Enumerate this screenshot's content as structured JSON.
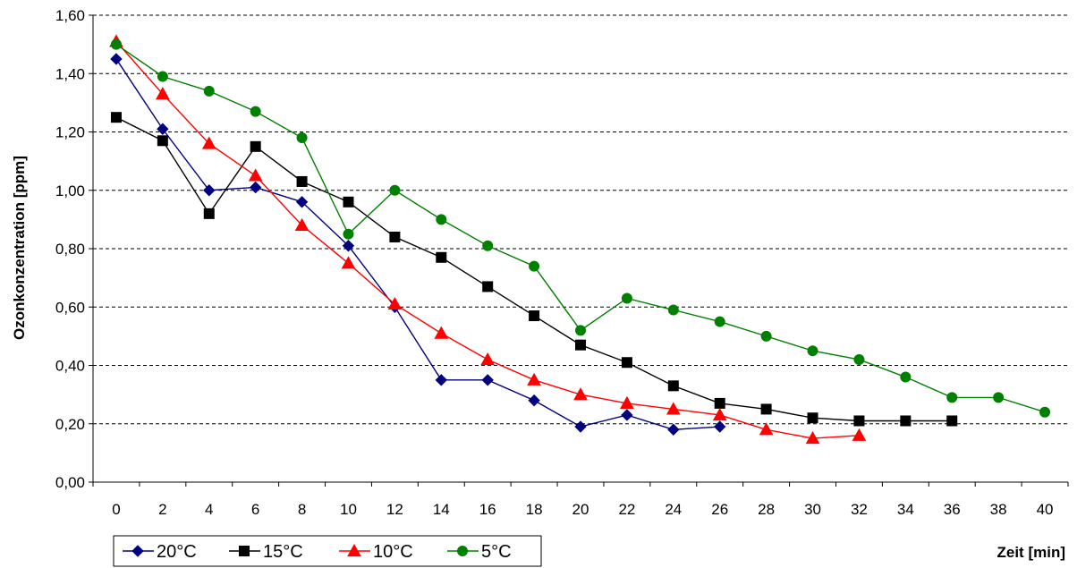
{
  "chart_data": {
    "type": "line",
    "title": "",
    "xlabel": "Zeit [min]",
    "ylabel": "Ozonkonzentration [ppm]",
    "xlim": [
      0,
      40
    ],
    "ylim": [
      0,
      1.6
    ],
    "x_ticks": [
      "0",
      "2",
      "4",
      "6",
      "8",
      "10",
      "12",
      "14",
      "16",
      "18",
      "20",
      "22",
      "24",
      "26",
      "28",
      "30",
      "32",
      "34",
      "36",
      "38",
      "40"
    ],
    "y_ticks": [
      "0,00",
      "0,20",
      "0,40",
      "0,60",
      "0,80",
      "1,00",
      "1,20",
      "1,40",
      "1,60"
    ],
    "grid": "horizontal dashed",
    "legend_position": "bottom-left",
    "series": [
      {
        "name": "20°C",
        "color": "#000080",
        "marker": "diamond",
        "x": [
          0,
          2,
          4,
          6,
          8,
          10,
          12,
          14,
          16,
          18,
          20,
          22,
          24,
          26
        ],
        "values": [
          1.45,
          1.21,
          1.0,
          1.01,
          0.96,
          0.81,
          0.6,
          0.35,
          0.35,
          0.28,
          0.19,
          0.23,
          0.18,
          0.19
        ]
      },
      {
        "name": "15°C",
        "color": "#000000",
        "marker": "square",
        "x": [
          0,
          2,
          4,
          6,
          8,
          10,
          12,
          14,
          16,
          18,
          20,
          22,
          24,
          26,
          28,
          30,
          32,
          34,
          36
        ],
        "values": [
          1.25,
          1.17,
          0.92,
          1.15,
          1.03,
          0.96,
          0.84,
          0.77,
          0.67,
          0.57,
          0.47,
          0.41,
          0.33,
          0.27,
          0.25,
          0.22,
          0.21,
          0.21,
          0.21
        ]
      },
      {
        "name": "10°C",
        "color": "#ff0000",
        "marker": "triangle",
        "x": [
          0,
          2,
          4,
          6,
          8,
          10,
          12,
          14,
          16,
          18,
          20,
          22,
          24,
          26,
          28,
          30,
          32
        ],
        "values": [
          1.51,
          1.33,
          1.16,
          1.05,
          0.88,
          0.75,
          0.61,
          0.51,
          0.42,
          0.35,
          0.3,
          0.27,
          0.25,
          0.23,
          0.18,
          0.15,
          0.16
        ]
      },
      {
        "name": "5°C",
        "color": "#008000",
        "marker": "circle",
        "x": [
          0,
          2,
          4,
          6,
          8,
          10,
          12,
          14,
          16,
          18,
          20,
          22,
          24,
          26,
          28,
          30,
          32,
          34,
          36,
          38,
          40
        ],
        "values": [
          1.5,
          1.39,
          1.34,
          1.27,
          1.18,
          0.85,
          1.0,
          0.9,
          0.81,
          0.74,
          0.52,
          0.63,
          0.59,
          0.55,
          0.5,
          0.45,
          0.42,
          0.36,
          0.29,
          0.29,
          0.24
        ]
      }
    ]
  }
}
